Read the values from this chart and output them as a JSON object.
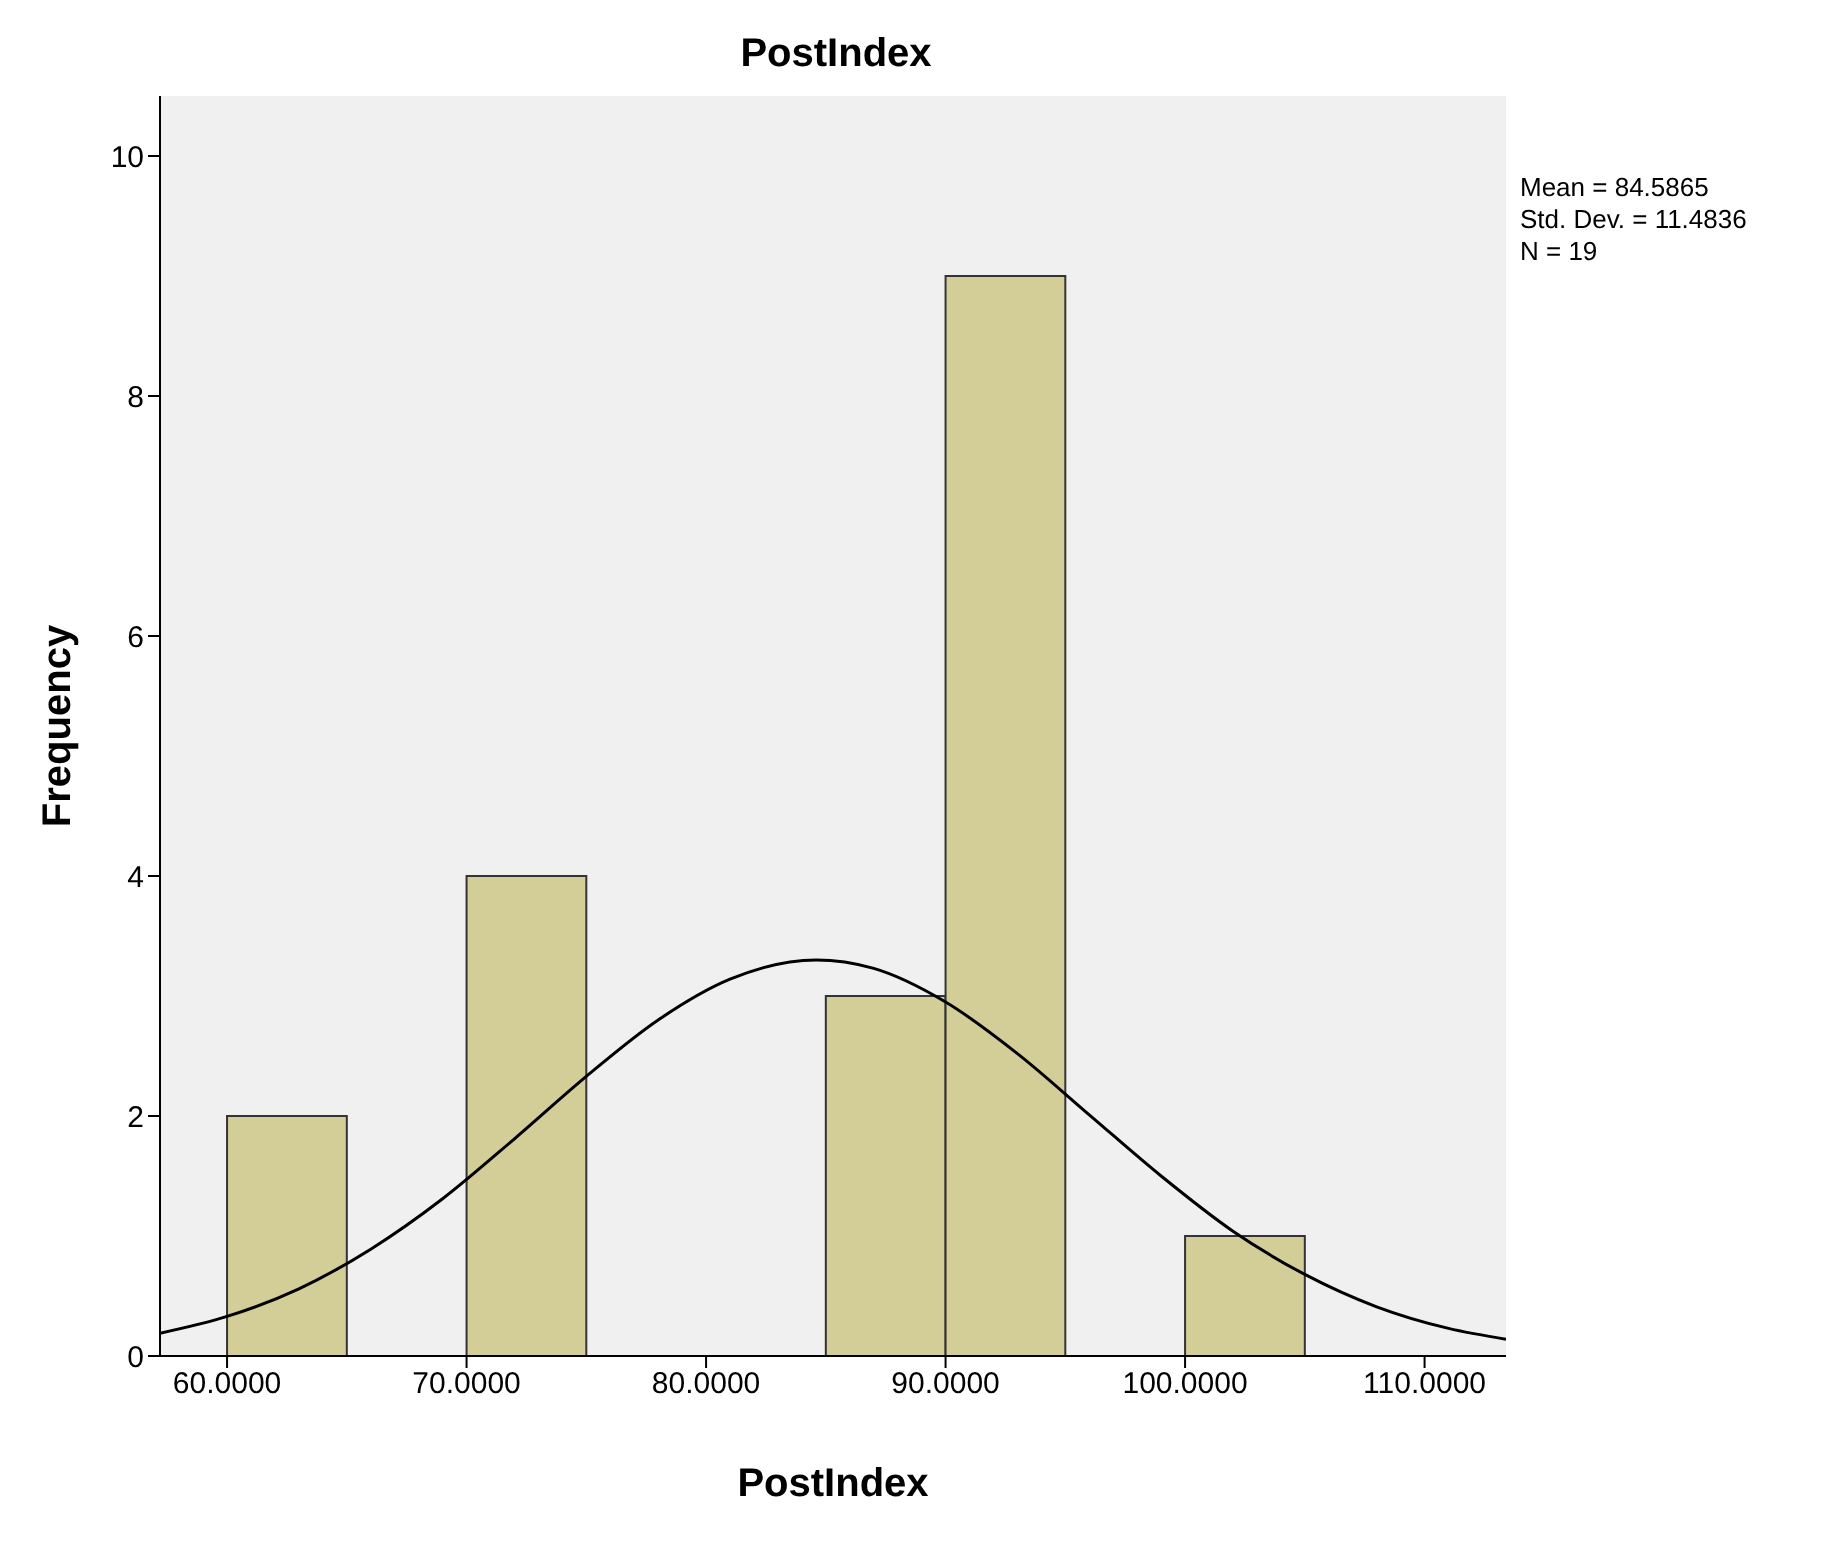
{
  "chart_data": {
    "type": "histogram",
    "title": "PostIndex",
    "xlabel": "PostIndex",
    "ylabel": "Frequency",
    "bins": [
      60,
      65,
      70,
      75,
      80,
      85,
      90,
      95,
      100,
      105
    ],
    "values": [
      2,
      0,
      4,
      0,
      0,
      3,
      9,
      0,
      1
    ],
    "color": "#d3ce98",
    "series": [
      {
        "type": "line",
        "color": "#000000",
        "x": [
          57.2,
          60,
          63,
          66,
          69,
          72,
          75,
          78,
          81,
          84.59,
          87,
          90,
          93,
          96,
          99,
          102,
          105,
          108,
          111,
          113.4
        ],
        "values": [
          0.19,
          0.33,
          0.56,
          0.89,
          1.31,
          1.81,
          2.33,
          2.8,
          3.14,
          3.3,
          3.23,
          2.95,
          2.52,
          2.01,
          1.5,
          1.04,
          0.68,
          0.41,
          0.23,
          0.14
        ]
      }
    ],
    "marker": "none",
    "line_style": "solid",
    "grid": false,
    "xlim": [
      57.2,
      113.4
    ],
    "xticks": [
      {
        "value": 60,
        "label": "60.0000"
      },
      {
        "value": 70,
        "label": "70.0000"
      },
      {
        "value": 80,
        "label": "80.0000"
      },
      {
        "value": 90,
        "label": "90.0000"
      },
      {
        "value": 100,
        "label": "100.0000"
      },
      {
        "value": 110,
        "label": "110.0000"
      }
    ],
    "ylim": [
      0,
      10.5
    ],
    "yticks": [
      0,
      2,
      4,
      6,
      8,
      10
    ],
    "annotations": [
      "Mean = 84.5865",
      "Std. Dev. = 11.4836",
      "N = 19"
    ]
  }
}
